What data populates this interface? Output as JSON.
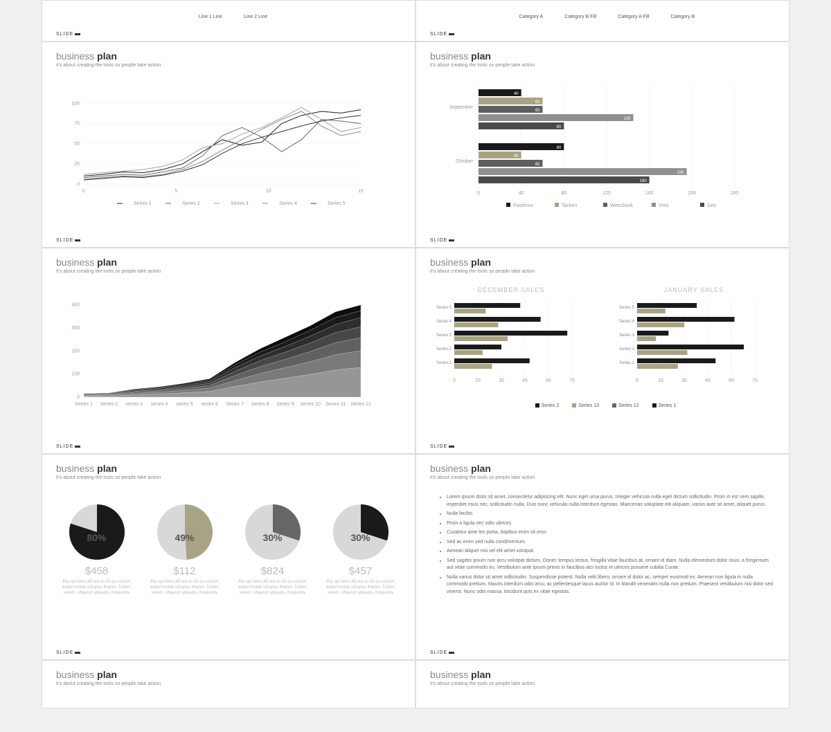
{
  "common": {
    "title_light": "business",
    "title_bold": "plan",
    "subtitle": "it's about creating the tools so people take action",
    "footer": "SLIDE"
  },
  "slide1_legend": [
    "Line 1 Line",
    "Line 2 Line"
  ],
  "slide2_legend": [
    "Category A",
    "Category B Fill",
    "Category A Fill",
    "Category B"
  ],
  "line_chart": {
    "type": "line",
    "xmax": 15,
    "ymax": 120,
    "yticks": [
      0,
      25,
      50,
      75,
      100
    ],
    "x_labels": [
      "Series 1",
      "Series 2",
      "Series 3",
      "Series 4",
      "Series 5"
    ],
    "colors": [
      "#1a1a1a",
      "#666666",
      "#a8a383",
      "#888888",
      "#333333"
    ],
    "grid_color": "#e8e8e8",
    "series": [
      [
        10,
        12,
        15,
        14,
        18,
        25,
        40,
        55,
        48,
        52,
        75,
        85,
        90,
        88,
        92
      ],
      [
        8,
        10,
        12,
        11,
        15,
        20,
        35,
        60,
        70,
        58,
        40,
        55,
        80,
        78,
        75
      ],
      [
        12,
        14,
        16,
        18,
        22,
        30,
        45,
        50,
        62,
        70,
        82,
        95,
        80,
        65,
        70
      ],
      [
        6,
        8,
        10,
        9,
        12,
        18,
        28,
        42,
        55,
        68,
        80,
        90,
        72,
        60,
        65
      ],
      [
        5,
        7,
        9,
        8,
        11,
        16,
        24,
        38,
        50,
        58,
        65,
        72,
        78,
        82,
        85
      ]
    ]
  },
  "hbar_chart": {
    "type": "grouped-horizontal-bar",
    "xmax": 240,
    "xtick_step": 40,
    "groups": [
      "September",
      "October"
    ],
    "series": [
      "Foodmov",
      "Tacken",
      "Weecbook",
      "Vreo",
      "Geo"
    ],
    "colors": [
      "#1a1a1a",
      "#a8a383",
      "#5e5e5e",
      "#909090",
      "#4a4a4a"
    ],
    "values": [
      [
        40,
        60,
        60,
        145,
        80
      ],
      [
        80,
        40,
        60,
        195,
        160
      ]
    ]
  },
  "area_chart": {
    "type": "stacked-area",
    "ymax": 450,
    "yticks": [
      0,
      100,
      200,
      300,
      400
    ],
    "x_labels": [
      "Series 1",
      "Series 2",
      "series 3",
      "series 4",
      "series 5",
      "series 6",
      "Series 7",
      "Series 8",
      "Series 9",
      "Series 10",
      "Series 11",
      "Series 12"
    ],
    "colors_top_to_bottom": [
      "#0d0d0d",
      "#1a1a1a",
      "#2e2e2e",
      "#474747",
      "#616161",
      "#7a7a7a",
      "#969696"
    ],
    "stacks": [
      [
        15,
        18,
        35,
        45,
        60,
        80,
        150,
        210,
        260,
        310,
        370,
        400
      ],
      [
        13,
        16,
        32,
        42,
        55,
        74,
        140,
        195,
        240,
        290,
        345,
        375
      ],
      [
        11,
        14,
        29,
        38,
        50,
        68,
        128,
        178,
        220,
        265,
        315,
        345
      ],
      [
        9,
        12,
        25,
        33,
        44,
        60,
        112,
        158,
        195,
        235,
        280,
        305
      ],
      [
        7,
        10,
        21,
        28,
        37,
        50,
        94,
        132,
        164,
        198,
        236,
        258
      ],
      [
        5,
        7,
        16,
        22,
        29,
        39,
        72,
        102,
        128,
        154,
        184,
        201
      ],
      [
        3,
        4,
        10,
        14,
        19,
        25,
        46,
        66,
        82,
        99,
        118,
        129
      ]
    ]
  },
  "mini_bars": {
    "titles": [
      "DECEMBER SALES",
      "JANUARY SALES"
    ],
    "y_labels": [
      "Series 5",
      "Series 4",
      "Series 3",
      "Series 2",
      "Series 1"
    ],
    "xticks": [
      0,
      15,
      30,
      45,
      60,
      75
    ],
    "legend": [
      "Series 2",
      "Series 13",
      "Series 12",
      "Series 1"
    ],
    "colors": [
      "#1a1a1a",
      "#a8a383",
      "#666666",
      "#1a1a1a"
    ],
    "dec": [
      [
        42,
        20
      ],
      [
        55,
        28
      ],
      [
        72,
        34
      ],
      [
        30,
        18
      ],
      [
        48,
        24
      ]
    ],
    "jan": [
      [
        38,
        18
      ],
      [
        62,
        30
      ],
      [
        20,
        12
      ],
      [
        68,
        32
      ],
      [
        50,
        26
      ]
    ]
  },
  "pies": {
    "bg_color": "#d8d8d8",
    "items": [
      {
        "pct": "80%",
        "val": 80,
        "color": "#1a1a1a",
        "price": "$458"
      },
      {
        "pct": "49%",
        "val": 49,
        "color": "#a8a383",
        "price": "$112"
      },
      {
        "pct": "30%",
        "val": 30,
        "color": "#666666",
        "price": "$824"
      },
      {
        "pct": "30%",
        "val": 30,
        "color": "#1a1a1a",
        "price": "$457"
      }
    ],
    "desc": "Ria qui dem ullit aut as dit ea corrum experrundae soluptas illuptas. Doleni autem. Ulparum etquatia. Nequunta"
  },
  "bullets": [
    "Lorem ipsum dolor sit amet, consectetur adipiscing elit. Nunc eget urna purus. Integer vehicula nulla eget dictum sollicitudin. Proin in est sem sapille, imperdiet risus nec, sollicitudin nulla. Duis nunc vehicula nulla interdum egestas. Maecenas voluptate elit aliquam, varius aute sit amet, aliquet purus.",
    "Nulla facilisi.",
    "Proin a ligula nec odio ultrices.",
    "Curabitur ante leo porta, dapibus enim sit eros.",
    "Sed ac enim sed nulla condimentum.",
    "Aenean aliquet nisi vel elit amet volutpat.",
    "Sed sagittis ipsum non arcu volutpat dictum. Donec tempus lectus, fringilla vitae faucibus at, ornare id diam. Nulla elementum dolor risus, a fringirmum aut vitae commodo eu. Vestibulum ante ipsum primis in faucibus atci luctus et ultrices posuere cubilia Curae.",
    "Nulla varius dolor sit amet sollicitudin. Suspendisse potenti. Nulla velit libero, ornare id dolor ac, semper euismod ex. Aenean non ligula in nulla commodo pretium. Mauris interdum odio arcu, ac pellentesque lacus auctor id. In blandit venenatis nulla non pretium. Praesent vestibulum nisi dolor sed viverra. Nunc odio massa, tincidunt quis ex vitae egestas."
  ]
}
